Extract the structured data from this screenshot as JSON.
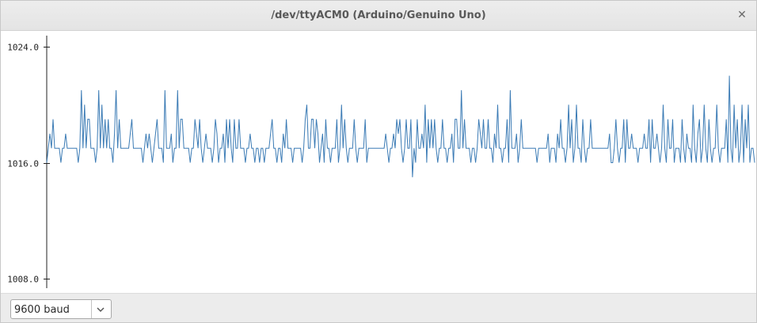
{
  "window": {
    "title": "/dev/ttyACM0 (Arduino/Genuino Uno)",
    "close_glyph": "✕"
  },
  "baud_select": {
    "selected": "9600 baud"
  },
  "colors": {
    "signal_line": "#3b7bb5",
    "axis": "#222222"
  },
  "icons": {
    "close": "close-icon",
    "dropdown": "chevron-down-icon"
  },
  "chart_data": {
    "type": "line",
    "ylim": [
      1008.0,
      1024.0
    ],
    "yticks": [
      1024.0,
      1016.0,
      1008.0
    ],
    "ytick_labels": [
      "1024.0",
      "1016.0",
      "1008.0"
    ],
    "grid": false,
    "series": [
      {
        "values": [
          1016,
          1017,
          1018,
          1017,
          1019,
          1017,
          1017,
          1017,
          1017,
          1016,
          1017,
          1017,
          1018,
          1017,
          1017,
          1017,
          1017,
          1017,
          1017,
          1017,
          1016,
          1017,
          1021,
          1017,
          1020,
          1017,
          1019,
          1019,
          1017,
          1017,
          1017,
          1016,
          1017,
          1021,
          1017,
          1020,
          1017,
          1019,
          1017,
          1019,
          1017,
          1017,
          1016,
          1018,
          1021,
          1017,
          1019,
          1017,
          1017,
          1017,
          1017,
          1017,
          1017,
          1018,
          1019,
          1017,
          1017,
          1017,
          1017,
          1017,
          1017,
          1016,
          1017,
          1018,
          1017,
          1018,
          1017,
          1016,
          1017,
          1018,
          1019,
          1017,
          1017,
          1017,
          1016,
          1021,
          1017,
          1017,
          1017,
          1018,
          1016,
          1017,
          1017,
          1021,
          1017,
          1019,
          1019,
          1017,
          1017,
          1017,
          1017,
          1016,
          1017,
          1017,
          1019,
          1018,
          1017,
          1019,
          1017,
          1016,
          1017,
          1018,
          1017,
          1017,
          1017,
          1016,
          1017,
          1019,
          1018,
          1016,
          1017,
          1017,
          1018,
          1016,
          1019,
          1017,
          1019,
          1017,
          1016,
          1019,
          1017,
          1017,
          1019,
          1017,
          1017,
          1017,
          1016,
          1017,
          1017,
          1018,
          1017,
          1017,
          1016,
          1017,
          1017,
          1016,
          1017,
          1017,
          1016,
          1017,
          1017,
          1017,
          1018,
          1019,
          1017,
          1017,
          1016,
          1017,
          1017,
          1016,
          1018,
          1017,
          1019,
          1017,
          1017,
          1017,
          1016,
          1017,
          1017,
          1017,
          1017,
          1017,
          1016,
          1017,
          1019,
          1020,
          1017,
          1017,
          1019,
          1019,
          1017,
          1019,
          1018,
          1016,
          1017,
          1018,
          1016,
          1019,
          1017,
          1017,
          1016,
          1017,
          1017,
          1017,
          1019,
          1016,
          1017,
          1020,
          1017,
          1019,
          1017,
          1016,
          1017,
          1017,
          1017,
          1019,
          1017,
          1016,
          1017,
          1017,
          1017,
          1017,
          1019,
          1016,
          1017,
          1017,
          1017,
          1017,
          1017,
          1017,
          1017,
          1017,
          1017,
          1017,
          1017,
          1018,
          1017,
          1016,
          1017,
          1017,
          1018,
          1017,
          1019,
          1018,
          1019,
          1017,
          1016,
          1017,
          1019,
          1017,
          1017,
          1019,
          1015,
          1017,
          1016,
          1019,
          1017,
          1017,
          1018,
          1017,
          1020,
          1016,
          1019,
          1017,
          1019,
          1017,
          1019,
          1017,
          1016,
          1017,
          1017,
          1019,
          1017,
          1017,
          1016,
          1017,
          1017,
          1018,
          1016,
          1019,
          1019,
          1017,
          1017,
          1021,
          1017,
          1019,
          1017,
          1017,
          1017,
          1016,
          1017,
          1017,
          1016,
          1017,
          1019,
          1018,
          1017,
          1019,
          1017,
          1017,
          1019,
          1017,
          1017,
          1016,
          1018,
          1017,
          1020,
          1017,
          1017,
          1016,
          1017,
          1017,
          1019,
          1016,
          1021,
          1017,
          1017,
          1017,
          1018,
          1016,
          1017,
          1019,
          1017,
          1017,
          1017,
          1017,
          1017,
          1017,
          1017,
          1017,
          1017,
          1016,
          1017,
          1017,
          1017,
          1017,
          1017,
          1017,
          1018,
          1016,
          1017,
          1017,
          1017,
          1016,
          1018,
          1017,
          1019,
          1017,
          1017,
          1016,
          1017,
          1020,
          1017,
          1019,
          1016,
          1017,
          1020,
          1017,
          1017,
          1016,
          1019,
          1017,
          1016,
          1017,
          1017,
          1019,
          1017,
          1017,
          1017,
          1017,
          1017,
          1017,
          1017,
          1017,
          1017,
          1017,
          1017,
          1018,
          1016,
          1016,
          1017,
          1019,
          1017,
          1016,
          1017,
          1017,
          1019,
          1016,
          1019,
          1017,
          1017,
          1018,
          1017,
          1017,
          1017,
          1016,
          1017,
          1017,
          1017,
          1018,
          1017,
          1017,
          1019,
          1016,
          1019,
          1017,
          1017,
          1018,
          1017,
          1016,
          1017,
          1020,
          1017,
          1016,
          1019,
          1017,
          1017,
          1019,
          1016,
          1017,
          1017,
          1017,
          1016,
          1019,
          1017,
          1016,
          1018,
          1017,
          1017,
          1016,
          1020,
          1017,
          1016,
          1018,
          1019,
          1016,
          1017,
          1020,
          1017,
          1016,
          1019,
          1017,
          1016,
          1017,
          1017,
          1020,
          1017,
          1016,
          1017,
          1017,
          1017,
          1019,
          1016,
          1022,
          1017,
          1016,
          1020,
          1017,
          1019,
          1016,
          1017,
          1020,
          1016,
          1019,
          1017,
          1020,
          1016,
          1017,
          1017,
          1016
        ]
      }
    ]
  }
}
